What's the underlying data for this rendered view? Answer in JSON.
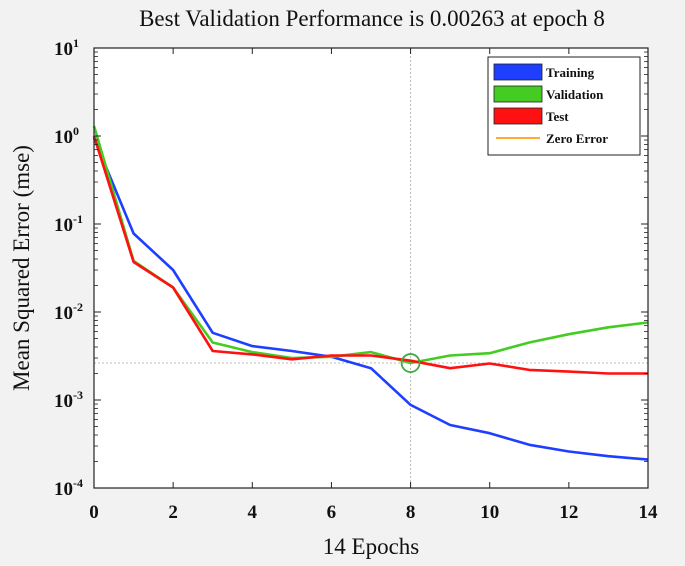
{
  "chart_data": {
    "type": "line",
    "title": "Best Validation Performance is 0.00263 at epoch 8",
    "xlabel": "14 Epochs",
    "ylabel": "Mean Squared Error  (mse)",
    "xlim": [
      0,
      14
    ],
    "ylim": [
      0.0001,
      10
    ],
    "yscale": "log",
    "x_ticks": [
      0,
      2,
      4,
      6,
      8,
      10,
      12,
      14
    ],
    "y_ticks": [
      {
        "value": 10,
        "base": "10",
        "exp": "1"
      },
      {
        "value": 1,
        "base": "10",
        "exp": "0"
      },
      {
        "value": 0.1,
        "base": "10",
        "exp": "-1"
      },
      {
        "value": 0.01,
        "base": "10",
        "exp": "-2"
      },
      {
        "value": 0.001,
        "base": "10",
        "exp": "-3"
      },
      {
        "value": 0.0001,
        "base": "10",
        "exp": "-4"
      }
    ],
    "x": [
      0,
      1,
      2,
      3,
      4,
      5,
      6,
      7,
      8,
      9,
      10,
      11,
      12,
      13,
      14
    ],
    "series": [
      {
        "name": "Training",
        "color": "#1f3fff",
        "values": [
          0.95,
          0.078,
          0.03,
          0.0058,
          0.0041,
          0.0036,
          0.0031,
          0.0023,
          0.00088,
          0.00052,
          0.00042,
          0.00031,
          0.00026,
          0.00023,
          0.00021
        ]
      },
      {
        "name": "Validation",
        "color": "#44cc22",
        "values": [
          1.3,
          0.038,
          0.019,
          0.0045,
          0.0035,
          0.003,
          0.0031,
          0.0035,
          0.00263,
          0.0032,
          0.0034,
          0.0045,
          0.0056,
          0.0067,
          0.0076
        ]
      },
      {
        "name": "Test",
        "color": "#ff1111",
        "values": [
          1.0,
          0.037,
          0.019,
          0.0036,
          0.0033,
          0.0029,
          0.0032,
          0.0032,
          0.0028,
          0.0023,
          0.0026,
          0.0022,
          0.0021,
          0.002,
          0.002
        ]
      }
    ],
    "zero_error": {
      "name": "Zero Error",
      "color": "#ffaa33"
    },
    "best": {
      "epoch": 8,
      "value": 0.00263,
      "color": "#44aa44"
    },
    "legend": "top-right"
  }
}
